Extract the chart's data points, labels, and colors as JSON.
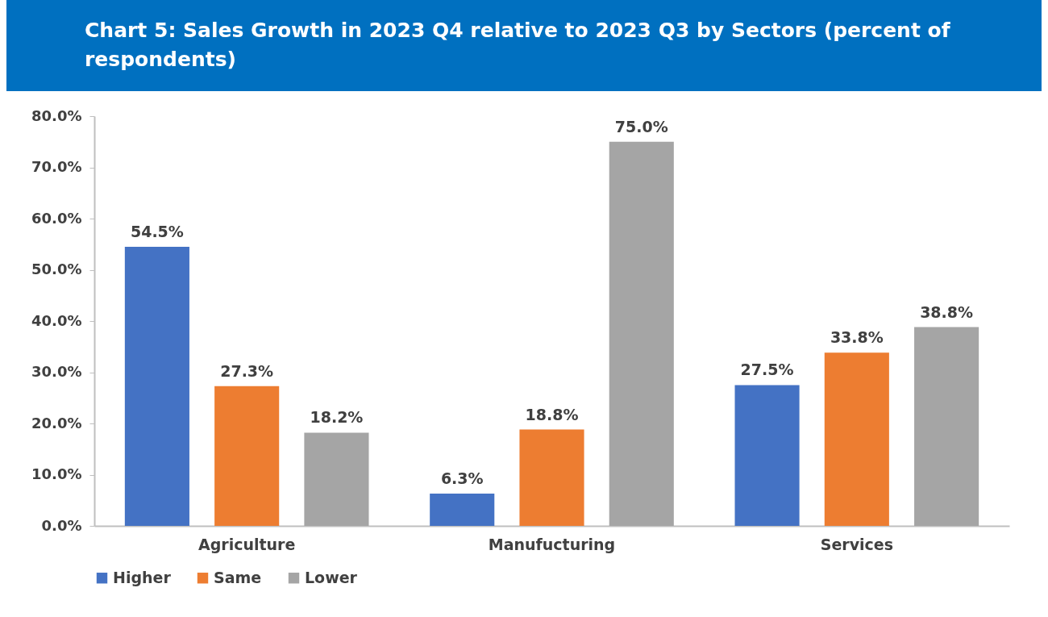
{
  "chart_data": {
    "type": "bar",
    "title": "Chart 5: Sales Growth in 2023 Q4 relative to 2023 Q3 by Sectors (percent of respondents)",
    "categories": [
      "Agriculture",
      "Manufucturing",
      "Services"
    ],
    "series": [
      {
        "name": "Higher",
        "color": "#4472c4",
        "values": [
          54.5,
          6.3,
          27.5
        ],
        "value_labels": [
          "54.5%",
          "6.3%",
          "27.5%"
        ]
      },
      {
        "name": "Same",
        "color": "#ed7d31",
        "values": [
          27.3,
          18.8,
          33.8
        ],
        "value_labels": [
          "27.3%",
          "18.8%",
          "33.8%"
        ]
      },
      {
        "name": "Lower",
        "color": "#a5a5a5",
        "values": [
          18.2,
          75.0,
          38.8
        ],
        "value_labels": [
          "18.2%",
          "75.0%",
          "38.8%"
        ]
      }
    ],
    "ylim": [
      0,
      80
    ],
    "yticks": [
      {
        "value": 0,
        "label": "0.0%"
      },
      {
        "value": 10,
        "label": "10.0%"
      },
      {
        "value": 20,
        "label": "20.0%"
      },
      {
        "value": 30,
        "label": "30.0%"
      },
      {
        "value": 40,
        "label": "40.0%"
      },
      {
        "value": 50,
        "label": "50.0%"
      },
      {
        "value": 60,
        "label": "60.0%"
      },
      {
        "value": 70,
        "label": "70.0%"
      },
      {
        "value": 80,
        "label": "80.0%"
      }
    ],
    "grid": false,
    "legend": "bottom"
  }
}
